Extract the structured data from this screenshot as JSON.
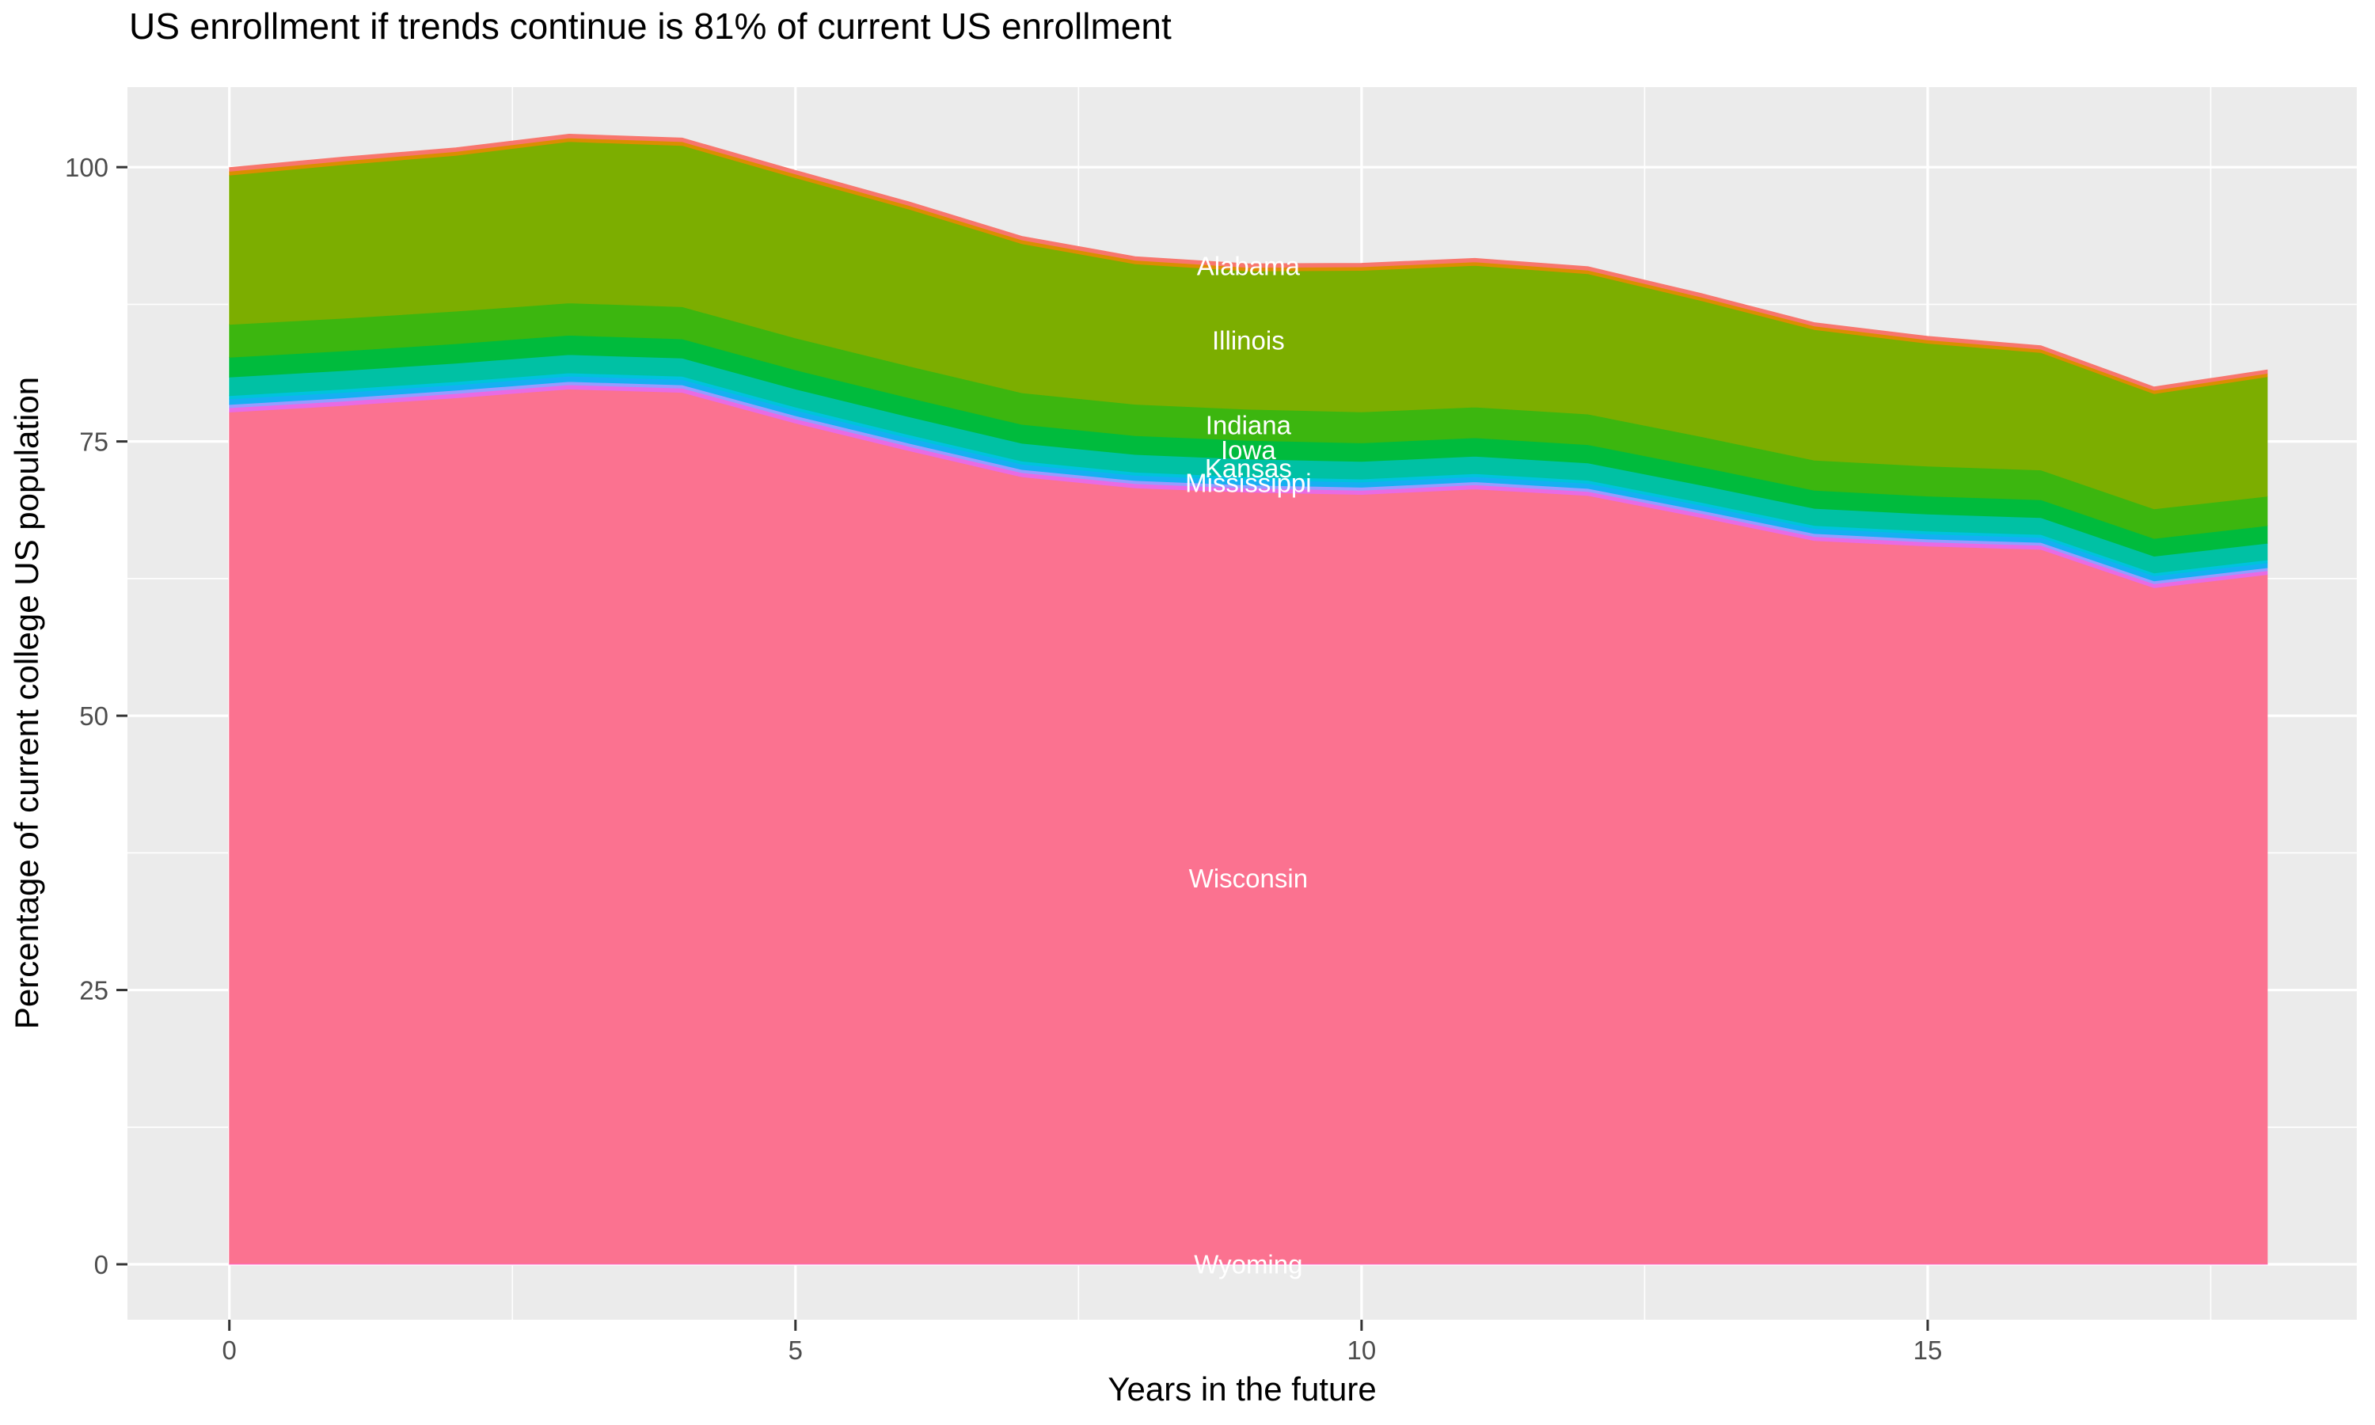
{
  "chart": {
    "title": "US enrollment if trends continue is 81% of current US enrollment",
    "x_axis": {
      "label": "Years in the future",
      "tick_labels": [
        "0",
        "5",
        "10",
        "15"
      ]
    },
    "y_axis": {
      "label": "Percentage of current college US population",
      "tick_labels": [
        "0",
        "25",
        "50",
        "75",
        "100"
      ]
    }
  },
  "chart_data": {
    "type": "area",
    "stacked": true,
    "title": "US enrollment if trends continue is 81% of current US enrollment",
    "xlabel": "Years in the future",
    "ylabel": "Percentage of current college US population",
    "x": [
      0,
      1,
      2,
      3,
      4,
      5,
      6,
      7,
      8,
      9,
      10,
      11,
      12,
      13,
      14,
      15,
      16,
      17,
      18
    ],
    "x_tick_values": [
      0,
      5,
      10,
      15
    ],
    "y_tick_values": [
      0,
      25,
      50,
      75,
      100
    ],
    "x_minor_tick_values": [
      2.5,
      7.5,
      12.5,
      17.5
    ],
    "y_minor_tick_values": [
      12.5,
      37.5,
      62.5,
      87.5
    ],
    "x_domain": [
      -0.9,
      18.79
    ],
    "y_domain": [
      -5.05,
      107.3
    ],
    "grid": "on",
    "legend_position": "none",
    "label_x_year": 9,
    "colors": {
      "panel_background": "#EBEBEB",
      "gridline": "#FFFFFF",
      "tick_mark": "#333333",
      "tick_label": "#4D4D4D",
      "area_label_text": "#FFFFFF"
    },
    "series": [
      {
        "name": "wyoming",
        "label": "Wyoming",
        "color": "#FF61C7",
        "values": [
          0.07,
          0.07,
          0.069,
          0.069,
          0.068,
          0.068,
          0.067,
          0.067,
          0.067,
          0.066,
          0.066,
          0.065,
          0.065,
          0.065,
          0.064,
          0.064,
          0.063,
          0.063,
          0.062
        ]
      },
      {
        "name": "wisconsin",
        "label": "Wisconsin",
        "color": "#FB7290",
        "values": [
          77.6,
          78.2,
          78.9,
          79.7,
          79.4,
          76.6,
          74.1,
          71.7,
          70.7,
          70.3,
          70.1,
          70.6,
          70.0,
          68.0,
          65.9,
          65.4,
          65.1,
          61.6,
          62.8
        ]
      },
      {
        "name": "other-states-mo-wv",
        "label": null,
        "color": "#E96BE4",
        "values": [
          0.4,
          0.398,
          0.395,
          0.393,
          0.39,
          0.388,
          0.386,
          0.383,
          0.381,
          0.378,
          0.376,
          0.374,
          0.371,
          0.369,
          0.366,
          0.364,
          0.362,
          0.359,
          0.357
        ]
      },
      {
        "name": "other-states-blue-purple",
        "label": null,
        "color": "#979BFF",
        "values": [
          0.3,
          0.298,
          0.296,
          0.295,
          0.293,
          0.291,
          0.289,
          0.287,
          0.286,
          0.284,
          0.282,
          0.28,
          0.278,
          0.277,
          0.275,
          0.273,
          0.271,
          0.269,
          0.268
        ]
      },
      {
        "name": "mississippi",
        "label": "Mississippi",
        "color": "#16AFF2",
        "values": [
          0.5,
          0.497,
          0.494,
          0.491,
          0.488,
          0.485,
          0.482,
          0.479,
          0.476,
          0.473,
          0.47,
          0.467,
          0.464,
          0.461,
          0.458,
          0.455,
          0.452,
          0.449,
          0.446
        ]
      },
      {
        "name": "other-states-ky-mn",
        "label": null,
        "color": "#00C3DD",
        "values": [
          0.3,
          0.298,
          0.296,
          0.295,
          0.293,
          0.291,
          0.289,
          0.287,
          0.286,
          0.284,
          0.282,
          0.28,
          0.278,
          0.277,
          0.275,
          0.273,
          0.271,
          0.269,
          0.268
        ]
      },
      {
        "name": "kansas",
        "label": "Kansas",
        "color": "#00C1A4",
        "values": [
          1.7,
          1.69,
          1.68,
          1.669,
          1.659,
          1.649,
          1.639,
          1.629,
          1.618,
          1.608,
          1.598,
          1.588,
          1.578,
          1.567,
          1.557,
          1.547,
          1.537,
          1.527,
          1.516
        ]
      },
      {
        "name": "iowa",
        "label": "Iowa",
        "color": "#00BB3D",
        "values": [
          1.8,
          1.789,
          1.778,
          1.768,
          1.757,
          1.746,
          1.735,
          1.724,
          1.714,
          1.703,
          1.692,
          1.681,
          1.67,
          1.66,
          1.649,
          1.638,
          1.627,
          1.616,
          1.606
        ]
      },
      {
        "name": "indiana",
        "label": "Indiana",
        "color": "#3CB60F",
        "values": [
          3.0,
          2.982,
          2.964,
          2.946,
          2.928,
          2.91,
          2.892,
          2.874,
          2.856,
          2.838,
          2.82,
          2.802,
          2.784,
          2.766,
          2.748,
          2.73,
          2.712,
          2.694,
          2.676
        ]
      },
      {
        "name": "illinois",
        "label": "Illinois",
        "color": "#7CAE00",
        "values": [
          13.6,
          14.0,
          14.2,
          14.7,
          14.7,
          14.6,
          14.3,
          13.6,
          12.8,
          12.6,
          12.9,
          12.9,
          12.8,
          12.4,
          11.9,
          11.2,
          10.7,
          10.5,
          10.9
        ]
      },
      {
        "name": "other-states-ak-id",
        "label": null,
        "color": "#DB8E00",
        "values": [
          0.35,
          0.348,
          0.346,
          0.344,
          0.342,
          0.34,
          0.337,
          0.335,
          0.333,
          0.331,
          0.329,
          0.327,
          0.325,
          0.323,
          0.321,
          0.319,
          0.316,
          0.314,
          0.312
        ]
      },
      {
        "name": "alabama",
        "label": "Alabama",
        "color": "#F8766D",
        "values": [
          0.35,
          0.348,
          0.346,
          0.344,
          0.342,
          0.34,
          0.337,
          0.335,
          0.333,
          0.331,
          0.329,
          0.327,
          0.325,
          0.323,
          0.321,
          0.319,
          0.316,
          0.314,
          0.312
        ]
      }
    ]
  }
}
